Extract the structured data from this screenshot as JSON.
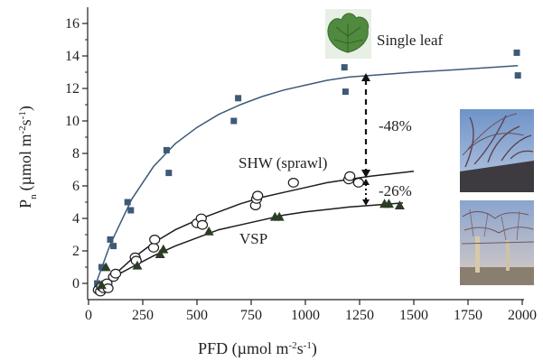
{
  "chart_data": {
    "type": "scatter",
    "xlabel": "PFD (µmol m⁻²s⁻¹)",
    "ylabel": "Pn (µmol m⁻²s⁻¹)",
    "xlim": [
      0,
      2000
    ],
    "ylim": [
      -1,
      17
    ],
    "xticks": [
      0,
      250,
      500,
      750,
      1000,
      1250,
      1500,
      1750,
      2000
    ],
    "yticks": [
      0,
      2,
      4,
      6,
      8,
      10,
      12,
      14,
      16
    ],
    "grid": false,
    "series": [
      {
        "name": "Single leaf",
        "marker": "square",
        "color": "#3e5a78",
        "points": [
          [
            40,
            0
          ],
          [
            60,
            1
          ],
          [
            100,
            2.7
          ],
          [
            115,
            2.3
          ],
          [
            180,
            5
          ],
          [
            195,
            4.5
          ],
          [
            360,
            8.2
          ],
          [
            370,
            6.8
          ],
          [
            670,
            10
          ],
          [
            690,
            11.4
          ],
          [
            1180,
            13.3
          ],
          [
            1185,
            11.8
          ],
          [
            1975,
            14.2
          ],
          [
            1980,
            12.8
          ]
        ],
        "fit": [
          [
            40,
            0.2
          ],
          [
            100,
            2.4
          ],
          [
            200,
            5.2
          ],
          [
            300,
            7.2
          ],
          [
            400,
            8.6
          ],
          [
            500,
            9.6
          ],
          [
            600,
            10.4
          ],
          [
            700,
            11
          ],
          [
            800,
            11.5
          ],
          [
            900,
            11.9
          ],
          [
            1000,
            12.2
          ],
          [
            1100,
            12.5
          ],
          [
            1200,
            12.7
          ],
          [
            1500,
            13
          ],
          [
            1750,
            13.2
          ],
          [
            1980,
            13.4
          ]
        ]
      },
      {
        "name": "SHW (sprawl)",
        "marker": "circle",
        "color": "#ffffff",
        "points": [
          [
            45,
            -0.4
          ],
          [
            55,
            -0.5
          ],
          [
            60,
            -0.2
          ],
          [
            70,
            -0.3
          ],
          [
            85,
            0
          ],
          [
            90,
            -0.3
          ],
          [
            115,
            0.4
          ],
          [
            125,
            0.6
          ],
          [
            215,
            1.6
          ],
          [
            220,
            1.4
          ],
          [
            300,
            2.2
          ],
          [
            305,
            2.7
          ],
          [
            500,
            3.7
          ],
          [
            520,
            4
          ],
          [
            525,
            3.6
          ],
          [
            770,
            4.8
          ],
          [
            775,
            5.2
          ],
          [
            780,
            5.4
          ],
          [
            945,
            6.2
          ],
          [
            1200,
            6.4
          ],
          [
            1205,
            6.6
          ],
          [
            1245,
            6.2
          ]
        ],
        "fit": [
          [
            45,
            -0.4
          ],
          [
            100,
            0.3
          ],
          [
            200,
            1.5
          ],
          [
            300,
            2.5
          ],
          [
            400,
            3.3
          ],
          [
            500,
            3.9
          ],
          [
            600,
            4.4
          ],
          [
            700,
            4.9
          ],
          [
            800,
            5.3
          ],
          [
            900,
            5.6
          ],
          [
            1000,
            5.9
          ],
          [
            1100,
            6.2
          ],
          [
            1200,
            6.4
          ],
          [
            1300,
            6.6
          ],
          [
            1400,
            6.75
          ],
          [
            1500,
            6.9
          ]
        ]
      },
      {
        "name": "VSP",
        "marker": "triangle",
        "color": "#2b3d24",
        "points": [
          [
            60,
            -0.1
          ],
          [
            80,
            1
          ],
          [
            225,
            1.1
          ],
          [
            330,
            1.8
          ],
          [
            345,
            2.1
          ],
          [
            555,
            3.2
          ],
          [
            860,
            4.1
          ],
          [
            880,
            4.1
          ],
          [
            1365,
            4.9
          ],
          [
            1385,
            4.9
          ],
          [
            1435,
            4.8
          ]
        ],
        "fit": [
          [
            60,
            -0.1
          ],
          [
            100,
            0.3
          ],
          [
            200,
            1
          ],
          [
            300,
            1.7
          ],
          [
            400,
            2.3
          ],
          [
            500,
            2.8
          ],
          [
            600,
            3.3
          ],
          [
            700,
            3.6
          ],
          [
            800,
            3.9
          ],
          [
            900,
            4.2
          ],
          [
            1000,
            4.4
          ],
          [
            1100,
            4.55
          ],
          [
            1200,
            4.7
          ],
          [
            1300,
            4.8
          ],
          [
            1400,
            4.9
          ],
          [
            1450,
            4.95
          ]
        ]
      }
    ],
    "annotations": [
      {
        "text": "-48%"
      },
      {
        "text": "-26%"
      }
    ]
  },
  "labels": {
    "single_leaf": "Single leaf",
    "shw": "SHW (sprawl)",
    "vsp": "VSP",
    "pct48": "-48%",
    "pct26": "-26%",
    "xlabel_main": "PFD (µmol m",
    "xlabel_exp1": "-2",
    "xlabel_mid": "s",
    "xlabel_exp2": "-1",
    "xlabel_end": ")",
    "ylabel_p": "P",
    "ylabel_n": "n",
    "ylabel_rest": "(µmol m",
    "ylabel_exp1": "-2",
    "ylabel_mid": "s",
    "ylabel_exp2": "-1",
    "ylabel_end": ")"
  }
}
